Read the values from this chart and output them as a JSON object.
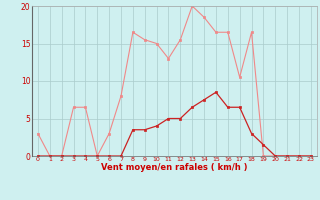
{
  "title": "",
  "xlabel": "Vent moyen/en rafales ( km/h )",
  "background_color": "#cff0f0",
  "grid_color": "#aacccc",
  "x_values": [
    0,
    1,
    2,
    3,
    4,
    5,
    6,
    7,
    8,
    9,
    10,
    11,
    12,
    13,
    14,
    15,
    16,
    17,
    18,
    19,
    20,
    21,
    22,
    23
  ],
  "light_line": [
    3,
    0,
    0,
    6.5,
    6.5,
    0,
    3,
    8,
    16.5,
    15.5,
    15,
    13,
    15.5,
    20,
    18.5,
    16.5,
    16.5,
    10.5,
    16.5,
    0,
    0,
    0,
    0,
    0
  ],
  "dark_line": [
    0,
    0,
    0,
    0,
    0,
    0,
    0,
    0,
    3.5,
    3.5,
    4,
    5,
    5,
    6.5,
    7.5,
    8.5,
    6.5,
    6.5,
    3,
    1.5,
    0,
    0,
    0,
    0
  ],
  "light_color": "#f08888",
  "dark_color": "#cc2222",
  "ylim": [
    0,
    20
  ],
  "xlim": [
    -0.5,
    23.5
  ],
  "yticks": [
    0,
    5,
    10,
    15,
    20
  ],
  "xticks": [
    0,
    1,
    2,
    3,
    4,
    5,
    6,
    7,
    8,
    9,
    10,
    11,
    12,
    13,
    14,
    15,
    16,
    17,
    18,
    19,
    20,
    21,
    22,
    23
  ]
}
